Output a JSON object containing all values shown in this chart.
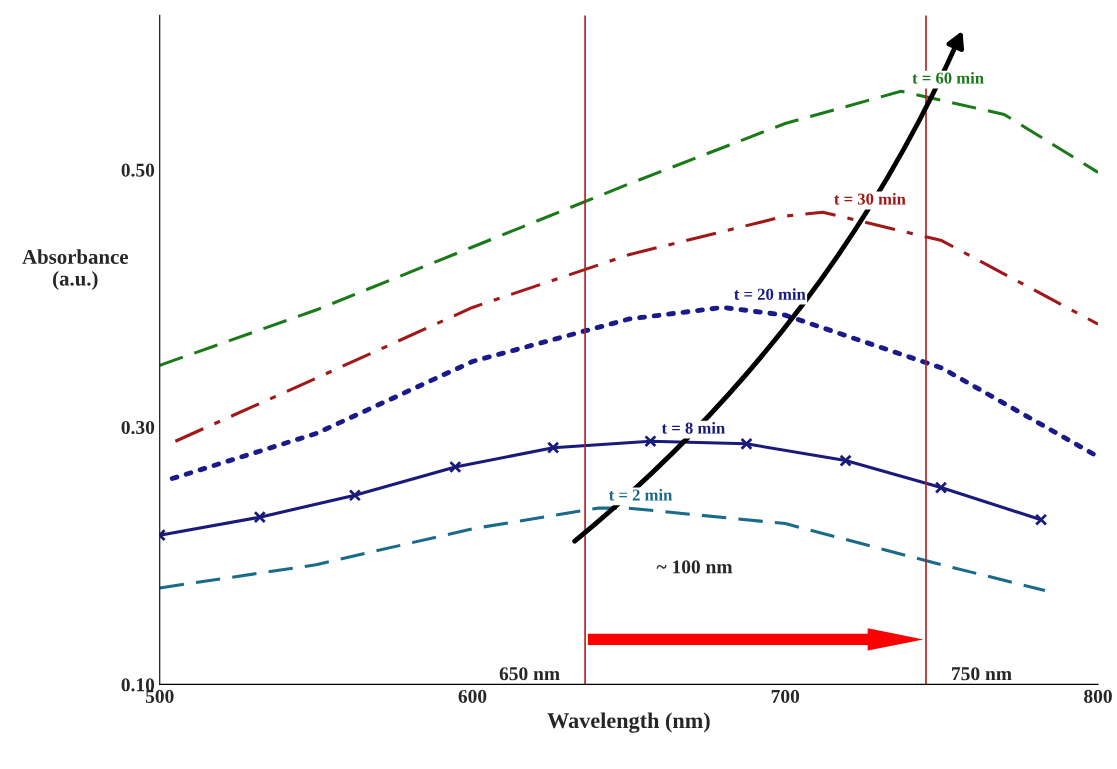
{
  "chart_data": {
    "type": "line",
    "xlabel": "Wavelength (nm)",
    "ylabel": "Absorbance\n(a.u.)",
    "xlim": [
      500,
      800
    ],
    "ylim": [
      0.1,
      0.62
    ],
    "xticks": [
      500,
      600,
      700,
      800
    ],
    "yticks": [
      {
        "value": 0.1,
        "label": "0.10"
      },
      {
        "value": 0.3,
        "label": "0.30"
      },
      {
        "value": 0.5,
        "label": "0.50"
      }
    ],
    "grid": false,
    "legend": false,
    "series": [
      {
        "name": "t = 60 min",
        "color": "#1a7a1a",
        "line_style": "dashed",
        "marker": "none",
        "x": [
          500,
          550,
          600,
          650,
          700,
          737,
          770,
          800
        ],
        "values": [
          0.348,
          0.391,
          0.44,
          0.489,
          0.536,
          0.561,
          0.543,
          0.498
        ]
      },
      {
        "name": "t = 30 min",
        "color": "#a01818",
        "line_style": "dashdot",
        "marker": "none",
        "x": [
          505,
          550,
          600,
          650,
          700,
          712,
          750,
          800
        ],
        "values": [
          0.289,
          0.338,
          0.393,
          0.434,
          0.464,
          0.467,
          0.445,
          0.38
        ]
      },
      {
        "name": "t = 20 min",
        "color": "#1a1a8a",
        "line_style": "dotted",
        "marker": "none",
        "x": [
          504,
          550,
          600,
          650,
          680,
          700,
          750,
          800
        ],
        "values": [
          0.26,
          0.295,
          0.351,
          0.384,
          0.393,
          0.387,
          0.346,
          0.277
        ]
      },
      {
        "name": "t = 8 min",
        "color": "#1a1a7a",
        "line_style": "solid",
        "marker": "cross",
        "x": [
          500,
          532,
          562.4,
          594.5,
          625.8,
          656.9,
          687.6,
          719.3,
          749.8,
          781.8
        ],
        "values": [
          0.216,
          0.23,
          0.247,
          0.269,
          0.284,
          0.289,
          0.287,
          0.274,
          0.253,
          0.228
        ]
      },
      {
        "name": "t = 2 min",
        "color": "#1a6a8a",
        "line_style": "dashed",
        "marker": "none",
        "x": [
          500,
          550,
          600,
          640,
          650,
          700,
          750,
          783
        ],
        "values": [
          0.175,
          0.193,
          0.221,
          0.237,
          0.237,
          0.225,
          0.193,
          0.173
        ]
      }
    ],
    "ref_lines": [
      {
        "axis": "x",
        "value": 636,
        "label": "650 nm",
        "color": "#b22222"
      },
      {
        "axis": "x",
        "value": 745,
        "label": "750 nm",
        "color": "#b22222"
      }
    ],
    "annotations": [
      "~ 100 nm"
    ]
  }
}
